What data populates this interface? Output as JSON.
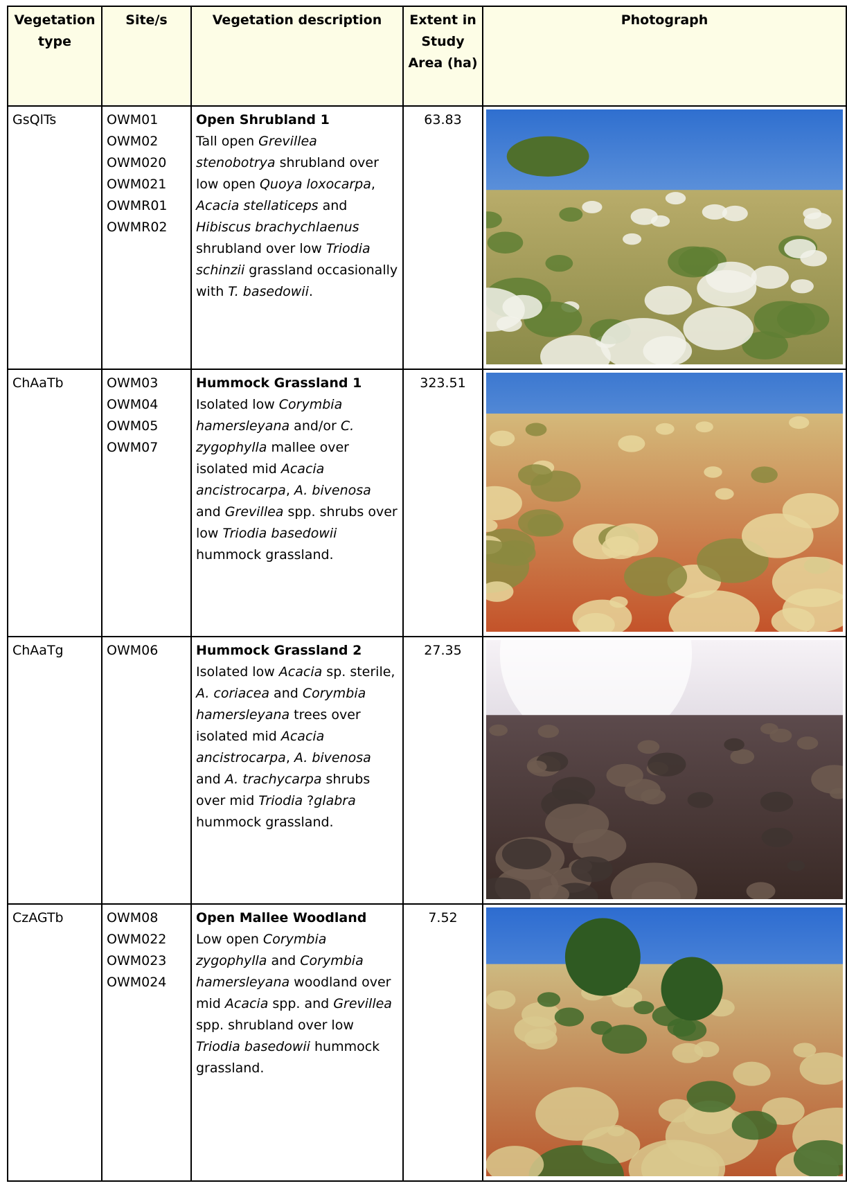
{
  "table": {
    "header": [
      "Vegetation type",
      "Site/s",
      "Vegetation description",
      "Extent in Study Area (ha)",
      "Photograph"
    ],
    "rows": [
      {
        "type": "GsQlTs",
        "sites": [
          "OWM01",
          "OWM02",
          "OWM020",
          "OWM021",
          "OWMR01",
          "OWMR02"
        ],
        "title": "Open Shrubland 1",
        "description": [
          {
            "text": "Tall open "
          },
          {
            "text": "Grevillea stenobotrya",
            "italic": true
          },
          {
            "text": " shrubland over low open "
          },
          {
            "text": "Quoya loxocarpa",
            "italic": true
          },
          {
            "text": ", "
          },
          {
            "text": "Acacia stellaticeps",
            "italic": true
          },
          {
            "text": " and "
          },
          {
            "text": "Hibiscus brachychlaenus",
            "italic": true
          },
          {
            "text": " shrubland over low "
          },
          {
            "text": "Triodia schinzii",
            "italic": true
          },
          {
            "text": " grassland occasionally with "
          },
          {
            "text": "T. basedowii",
            "italic": true
          },
          {
            "text": "."
          }
        ],
        "extent": 63.83
      },
      {
        "type": "ChAaTb",
        "sites": [
          "OWM03",
          "OWM04",
          "OWM05",
          "OWM07"
        ],
        "title": "Hummock Grassland 1",
        "description": [
          {
            "text": "Isolated low "
          },
          {
            "text": "Corymbia hamersleyana",
            "italic": true
          },
          {
            "text": " and/or "
          },
          {
            "text": "C. zygophylla",
            "italic": true
          },
          {
            "text": " mallee over isolated mid "
          },
          {
            "text": "Acacia ancistrocarpa",
            "italic": true
          },
          {
            "text": ", "
          },
          {
            "text": "A. bivenosa",
            "italic": true
          },
          {
            "text": " and "
          },
          {
            "text": "Grevillea",
            "italic": true
          },
          {
            "text": " spp. shrubs over low "
          },
          {
            "text": "Triodia basedowii",
            "italic": true
          },
          {
            "text": " hummock grassland."
          }
        ],
        "extent": 323.51
      },
      {
        "type": "ChAaTg",
        "sites": [
          "OWM06"
        ],
        "title": "Hummock Grassland 2",
        "description": [
          {
            "text": "Isolated low "
          },
          {
            "text": "Acacia",
            "italic": true
          },
          {
            "text": " sp. sterile, "
          },
          {
            "text": "A. coriacea",
            "italic": true
          },
          {
            "text": " and "
          },
          {
            "text": "Corymbia hamersleyana",
            "italic": true
          },
          {
            "text": " trees over isolated mid "
          },
          {
            "text": "Acacia ancistrocarpa",
            "italic": true
          },
          {
            "text": ", "
          },
          {
            "text": "A. bivenosa",
            "italic": true
          },
          {
            "text": " and "
          },
          {
            "text": "A. trachycarpa",
            "italic": true
          },
          {
            "text": " shrubs over mid "
          },
          {
            "text": "Triodia",
            "italic": true
          },
          {
            "text": " ?"
          },
          {
            "text": "glabra",
            "italic": true
          },
          {
            "text": " hummock grassland."
          }
        ],
        "extent": 27.35
      },
      {
        "type": "CzAGTb",
        "sites": [
          "OWM08",
          "OWM022",
          "OWM023",
          "OWM024"
        ],
        "title": "Open Mallee Woodland",
        "description": [
          {
            "text": "Low open "
          },
          {
            "text": "Corymbia zygophylla",
            "italic": true
          },
          {
            "text": " and "
          },
          {
            "text": "Corymbia hamersleyana",
            "italic": true
          },
          {
            "text": " woodland over mid "
          },
          {
            "text": "Acacia",
            "italic": true
          },
          {
            "text": " spp. and "
          },
          {
            "text": "Grevillea",
            "italic": true
          },
          {
            "text": " spp. shrubland over low "
          },
          {
            "text": "Triodia basedowii",
            "italic": true
          },
          {
            "text": " hummock grassland."
          }
        ],
        "extent": 7.52
      }
    ]
  }
}
